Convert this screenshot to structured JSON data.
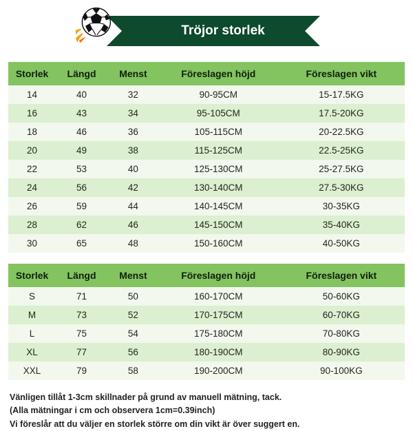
{
  "title": "Tröjor storlek",
  "colors": {
    "header_bg": "#83c360",
    "row_odd": "#f2f8ed",
    "row_even": "#dcefd0",
    "banner_bg": "#0d4a2e",
    "banner_text": "#ffffff",
    "text": "#24251f"
  },
  "table_kids": {
    "columns": [
      "Storlek",
      "Längd",
      "Menst",
      "Föreslagen höjd",
      "Föreslagen vikt"
    ],
    "rows": [
      [
        "14",
        "40",
        "32",
        "90-95CM",
        "15-17.5KG"
      ],
      [
        "16",
        "43",
        "34",
        "95-105CM",
        "17.5-20KG"
      ],
      [
        "18",
        "46",
        "36",
        "105-115CM",
        "20-22.5KG"
      ],
      [
        "20",
        "49",
        "38",
        "115-125CM",
        "22.5-25KG"
      ],
      [
        "22",
        "53",
        "40",
        "125-130CM",
        "25-27.5KG"
      ],
      [
        "24",
        "56",
        "42",
        "130-140CM",
        "27.5-30KG"
      ],
      [
        "26",
        "59",
        "44",
        "140-145CM",
        "30-35KG"
      ],
      [
        "28",
        "62",
        "46",
        "145-150CM",
        "35-40KG"
      ],
      [
        "30",
        "65",
        "48",
        "150-160CM",
        "40-50KG"
      ]
    ]
  },
  "table_adults": {
    "columns": [
      "Storlek",
      "Längd",
      "Menst",
      "Föreslagen höjd",
      "Föreslagen vikt"
    ],
    "rows": [
      [
        "S",
        "71",
        "50",
        "160-170CM",
        "50-60KG"
      ],
      [
        "M",
        "73",
        "52",
        "170-175CM",
        "60-70KG"
      ],
      [
        "L",
        "75",
        "54",
        "175-180CM",
        "70-80KG"
      ],
      [
        "XL",
        "77",
        "56",
        "180-190CM",
        "80-90KG"
      ],
      [
        "XXL",
        "79",
        "58",
        "190-200CM",
        "90-100KG"
      ]
    ]
  },
  "footnote_lines": [
    "Vänligen tillåt 1-3cm skillnader på grund av manuell mätning, tack.",
    "(Alla mätningar i cm och observera 1cm=0.39inch)",
    "Vi föreslår att du väljer en storlek större om din vikt är över suggert en."
  ]
}
